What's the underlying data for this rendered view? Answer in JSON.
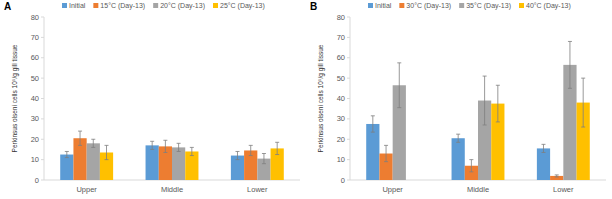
{
  "chart_data": [
    {
      "type": "bar",
      "title": "A",
      "y_label": "Perkinsus olseni cells 10⁵/g gill tissue",
      "categories": [
        "Upper",
        "Middle",
        "Lower"
      ],
      "series": [
        {
          "name": "Initial",
          "color": "#5b9bd5",
          "values": [
            12.5,
            17,
            12
          ],
          "errors": [
            1.5,
            2,
            2
          ]
        },
        {
          "name": "15°C (Day-13)",
          "color": "#ed7d31",
          "values": [
            20.5,
            16.5,
            14.5
          ],
          "errors": [
            3.5,
            3,
            2.5
          ]
        },
        {
          "name": "20°C (Day-13)",
          "color": "#a5a5a5",
          "values": [
            18,
            16,
            10.5
          ],
          "errors": [
            2,
            2,
            2.5
          ]
        },
        {
          "name": "25°C (Day-13)",
          "color": "#ffc000",
          "values": [
            13.5,
            14,
            15.5
          ],
          "errors": [
            3.5,
            2,
            3
          ]
        }
      ],
      "ylim": [
        0,
        80
      ],
      "yticks": [
        0,
        10,
        20,
        30,
        40,
        50,
        60,
        70,
        80
      ],
      "grid": false,
      "legend": "top"
    },
    {
      "type": "bar",
      "title": "B",
      "y_label": "Perkinsus olseni cells 10⁵/g gill tissue",
      "categories": [
        "Upper",
        "Middle",
        "Lower"
      ],
      "series": [
        {
          "name": "Initial",
          "color": "#5b9bd5",
          "values": [
            27.5,
            20.5,
            15.5
          ],
          "errors": [
            4,
            2,
            2
          ]
        },
        {
          "name": "30°C (Day-13)",
          "color": "#ed7d31",
          "values": [
            13,
            7,
            2
          ],
          "errors": [
            4,
            3,
            0.5
          ]
        },
        {
          "name": "35°C (Day-13)",
          "color": "#a5a5a5",
          "values": [
            46.5,
            39,
            56.5
          ],
          "errors": [
            11,
            12,
            11.5
          ]
        },
        {
          "name": "40°C (Day-13)",
          "color": "#ffc000",
          "values": [
            null,
            37.5,
            38
          ],
          "errors": [
            null,
            9,
            12
          ]
        }
      ],
      "ylim": [
        0,
        80
      ],
      "yticks": [
        0,
        10,
        20,
        30,
        40,
        50,
        60,
        70,
        80
      ],
      "grid": false,
      "legend": "top"
    }
  ]
}
